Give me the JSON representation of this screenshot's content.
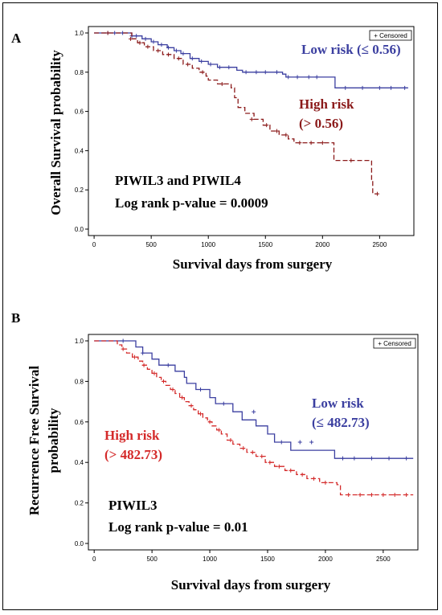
{
  "chart_data": [
    {
      "type": "line",
      "panel_label": "A",
      "xlabel": "Survival days from surgery",
      "ylabel": "Overall Survival probability",
      "xlim": [
        -50,
        2800
      ],
      "ylim": [
        0,
        1
      ],
      "xticks": [
        "0",
        "500",
        "1000",
        "1500",
        "2000",
        "2500"
      ],
      "yticks": [
        "0.0",
        "0.2",
        "0.4",
        "0.6",
        "0.8",
        "1.0"
      ],
      "legend": "+ Censored",
      "legend_position": "top-right",
      "annotations": {
        "signature": "PIWIL3 and PIWIL4",
        "pvalue": "Log rank p-value = 0.0009"
      },
      "series": [
        {
          "label_line1": "Low risk (≤ 0.56)",
          "label_line2": "",
          "color": "#3b3fa0",
          "dash": false,
          "points": [
            [
              0,
              1.0
            ],
            [
              300,
              1.0
            ],
            [
              330,
              0.985
            ],
            [
              420,
              0.97
            ],
            [
              500,
              0.955
            ],
            [
              560,
              0.94
            ],
            [
              640,
              0.925
            ],
            [
              700,
              0.91
            ],
            [
              760,
              0.895
            ],
            [
              840,
              0.87
            ],
            [
              920,
              0.855
            ],
            [
              1000,
              0.84
            ],
            [
              1080,
              0.825
            ],
            [
              1250,
              0.81
            ],
            [
              1300,
              0.8
            ],
            [
              1650,
              0.79
            ],
            [
              1680,
              0.775
            ],
            [
              2110,
              0.72
            ],
            [
              2750,
              0.72
            ]
          ],
          "censored": [
            [
              120,
              1.0
            ],
            [
              180,
              1.0
            ],
            [
              250,
              1.0
            ],
            [
              330,
              0.985
            ],
            [
              370,
              0.985
            ],
            [
              450,
              0.97
            ],
            [
              520,
              0.955
            ],
            [
              590,
              0.94
            ],
            [
              650,
              0.925
            ],
            [
              720,
              0.91
            ],
            [
              780,
              0.895
            ],
            [
              860,
              0.87
            ],
            [
              940,
              0.855
            ],
            [
              1020,
              0.84
            ],
            [
              1100,
              0.825
            ],
            [
              1180,
              0.825
            ],
            [
              1330,
              0.8
            ],
            [
              1420,
              0.8
            ],
            [
              1500,
              0.8
            ],
            [
              1600,
              0.8
            ],
            [
              1700,
              0.775
            ],
            [
              1780,
              0.775
            ],
            [
              1880,
              0.775
            ],
            [
              1950,
              0.775
            ],
            [
              2200,
              0.72
            ],
            [
              2350,
              0.72
            ],
            [
              2500,
              0.72
            ],
            [
              2600,
              0.72
            ],
            [
              2720,
              0.72
            ]
          ]
        },
        {
          "label_line1": "High risk",
          "label_line2": "(> 0.56)",
          "color": "#8b1a1a",
          "dash": true,
          "points": [
            [
              0,
              1.0
            ],
            [
              290,
              1.0
            ],
            [
              330,
              0.97
            ],
            [
              380,
              0.95
            ],
            [
              440,
              0.93
            ],
            [
              520,
              0.91
            ],
            [
              600,
              0.89
            ],
            [
              700,
              0.87
            ],
            [
              780,
              0.84
            ],
            [
              860,
              0.82
            ],
            [
              920,
              0.8
            ],
            [
              980,
              0.78
            ],
            [
              1000,
              0.76
            ],
            [
              1080,
              0.74
            ],
            [
              1200,
              0.72
            ],
            [
              1230,
              0.67
            ],
            [
              1260,
              0.62
            ],
            [
              1320,
              0.59
            ],
            [
              1400,
              0.56
            ],
            [
              1480,
              0.53
            ],
            [
              1540,
              0.5
            ],
            [
              1620,
              0.48
            ],
            [
              1700,
              0.46
            ],
            [
              1750,
              0.44
            ],
            [
              2100,
              0.35
            ],
            [
              2430,
              0.25
            ],
            [
              2440,
              0.18
            ],
            [
              2480,
              0.18
            ]
          ],
          "censored": [
            [
              120,
              1.0
            ],
            [
              320,
              0.97
            ],
            [
              400,
              0.95
            ],
            [
              470,
              0.93
            ],
            [
              560,
              0.91
            ],
            [
              650,
              0.89
            ],
            [
              740,
              0.87
            ],
            [
              820,
              0.84
            ],
            [
              950,
              0.8
            ],
            [
              1120,
              0.74
            ],
            [
              1380,
              0.56
            ],
            [
              1510,
              0.53
            ],
            [
              1600,
              0.5
            ],
            [
              1680,
              0.48
            ],
            [
              1800,
              0.44
            ],
            [
              1900,
              0.44
            ],
            [
              2000,
              0.44
            ],
            [
              2250,
              0.35
            ],
            [
              2480,
              0.18
            ]
          ]
        }
      ]
    },
    {
      "type": "line",
      "panel_label": "B",
      "xlabel": "Survival days from surgery",
      "ylabel_line1": "Recurrence Free Survival",
      "ylabel_line2": "probability",
      "xlim": [
        -50,
        2800
      ],
      "ylim": [
        0,
        1
      ],
      "xticks": [
        "0",
        "500",
        "1000",
        "1500",
        "2000",
        "2500"
      ],
      "yticks": [
        "0.0",
        "0.2",
        "0.4",
        "0.6",
        "0.8",
        "1.0"
      ],
      "legend": "+ Censored",
      "legend_position": "top-right",
      "annotations": {
        "signature": "PIWIL3",
        "pvalue": "Log rank p-value = 0.01"
      },
      "series": [
        {
          "label_line1": "Low risk",
          "label_line2": "(≤ 482.73)",
          "color": "#3b3fa0",
          "dash": false,
          "points": [
            [
              0,
              1.0
            ],
            [
              330,
              1.0
            ],
            [
              360,
              0.97
            ],
            [
              420,
              0.94
            ],
            [
              500,
              0.91
            ],
            [
              560,
              0.88
            ],
            [
              700,
              0.85
            ],
            [
              780,
              0.82
            ],
            [
              800,
              0.79
            ],
            [
              880,
              0.76
            ],
            [
              1000,
              0.72
            ],
            [
              1050,
              0.69
            ],
            [
              1200,
              0.65
            ],
            [
              1280,
              0.61
            ],
            [
              1400,
              0.58
            ],
            [
              1500,
              0.54
            ],
            [
              1560,
              0.5
            ],
            [
              1700,
              0.46
            ],
            [
              2080,
              0.42
            ],
            [
              2760,
              0.42
            ]
          ],
          "censored": [
            [
              250,
              1.0
            ],
            [
              420,
              0.94
            ],
            [
              640,
              0.88
            ],
            [
              920,
              0.76
            ],
            [
              1120,
              0.69
            ],
            [
              1380,
              0.65
            ],
            [
              1620,
              0.5
            ],
            [
              1780,
              0.5
            ],
            [
              1880,
              0.5
            ],
            [
              2150,
              0.42
            ],
            [
              2250,
              0.42
            ],
            [
              2400,
              0.42
            ],
            [
              2550,
              0.42
            ],
            [
              2700,
              0.42
            ]
          ]
        },
        {
          "label_line1": "High risk",
          "label_line2": "(> 482.73)",
          "color": "#d42a2a",
          "dash": true,
          "points": [
            [
              0,
              1.0
            ],
            [
              180,
              1.0
            ],
            [
              200,
              0.98
            ],
            [
              240,
              0.96
            ],
            [
              280,
              0.94
            ],
            [
              330,
              0.92
            ],
            [
              380,
              0.9
            ],
            [
              420,
              0.88
            ],
            [
              460,
              0.86
            ],
            [
              500,
              0.84
            ],
            [
              540,
              0.82
            ],
            [
              580,
              0.8
            ],
            [
              620,
              0.78
            ],
            [
              660,
              0.76
            ],
            [
              700,
              0.74
            ],
            [
              740,
              0.72
            ],
            [
              780,
              0.7
            ],
            [
              820,
              0.68
            ],
            [
              860,
              0.66
            ],
            [
              900,
              0.64
            ],
            [
              940,
              0.62
            ],
            [
              980,
              0.6
            ],
            [
              1020,
              0.58
            ],
            [
              1060,
              0.56
            ],
            [
              1100,
              0.54
            ],
            [
              1150,
              0.51
            ],
            [
              1200,
              0.49
            ],
            [
              1260,
              0.47
            ],
            [
              1320,
              0.45
            ],
            [
              1400,
              0.43
            ],
            [
              1480,
              0.4
            ],
            [
              1560,
              0.38
            ],
            [
              1650,
              0.36
            ],
            [
              1750,
              0.34
            ],
            [
              1840,
              0.32
            ],
            [
              1950,
              0.3
            ],
            [
              2100,
              0.29
            ],
            [
              2130,
              0.24
            ],
            [
              2760,
              0.24
            ]
          ],
          "censored": [
            [
              250,
              0.96
            ],
            [
              350,
              0.92
            ],
            [
              430,
              0.88
            ],
            [
              520,
              0.84
            ],
            [
              600,
              0.8
            ],
            [
              680,
              0.76
            ],
            [
              760,
              0.72
            ],
            [
              840,
              0.68
            ],
            [
              920,
              0.64
            ],
            [
              1000,
              0.6
            ],
            [
              1080,
              0.56
            ],
            [
              1180,
              0.51
            ],
            [
              1290,
              0.47
            ],
            [
              1370,
              0.45
            ],
            [
              1450,
              0.43
            ],
            [
              1520,
              0.4
            ],
            [
              1600,
              0.38
            ],
            [
              1700,
              0.36
            ],
            [
              1800,
              0.34
            ],
            [
              1900,
              0.32
            ],
            [
              2000,
              0.3
            ],
            [
              2200,
              0.24
            ],
            [
              2300,
              0.24
            ],
            [
              2400,
              0.24
            ],
            [
              2500,
              0.24
            ],
            [
              2600,
              0.24
            ],
            [
              2700,
              0.24
            ]
          ]
        }
      ]
    }
  ]
}
